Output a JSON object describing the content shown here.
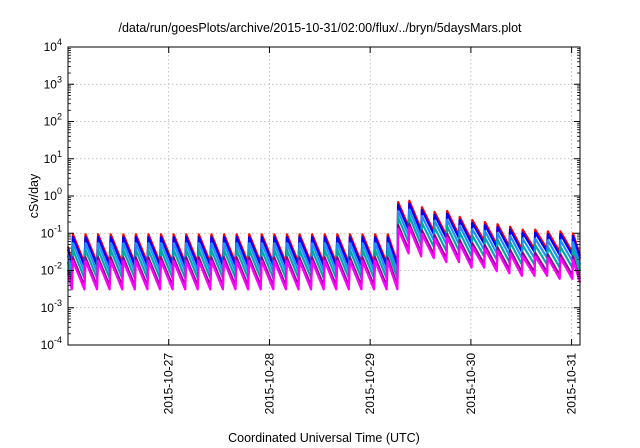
{
  "chart_data": {
    "type": "line",
    "title": "/data/run/goesPlots/archive/2015-10-31/02:00/flux/../bryn/5daysMars.plot",
    "xlabel": "Coordinated Universal Time (UTC)",
    "ylabel": "cSv/day",
    "yscale": "log",
    "ylim": [
      0.0001,
      10000
    ],
    "xlim": [
      "2015-10-26 00:00",
      "2015-10-31 02:00"
    ],
    "grid": true,
    "y_ticks": [
      {
        "base": "10",
        "exp": "-4",
        "value": 0.0001
      },
      {
        "base": "10",
        "exp": "-3",
        "value": 0.001
      },
      {
        "base": "10",
        "exp": "-2",
        "value": 0.01
      },
      {
        "base": "10",
        "exp": "-1",
        "value": 0.1
      },
      {
        "base": "10",
        "exp": "0",
        "value": 1
      },
      {
        "base": "10",
        "exp": "1",
        "value": 10
      },
      {
        "base": "10",
        "exp": "2",
        "value": 100
      },
      {
        "base": "10",
        "exp": "3",
        "value": 1000
      },
      {
        "base": "10",
        "exp": "4",
        "value": 10000
      }
    ],
    "x_ticks": [
      {
        "label": "2015-10-27",
        "value": "2015-10-27 00:00"
      },
      {
        "label": "2015-10-28",
        "value": "2015-10-28 00:00"
      },
      {
        "label": "2015-10-29",
        "value": "2015-10-29 00:00"
      },
      {
        "label": "2015-10-30",
        "value": "2015-10-30 00:00"
      },
      {
        "label": "2015-10-31",
        "value": "2015-10-31 00:00"
      }
    ],
    "series": [
      {
        "color": "#ff0000",
        "scale": 1.25
      },
      {
        "color": "#0000ff",
        "scale": 1.05
      },
      {
        "color": "#1e90ff",
        "scale": 0.72
      },
      {
        "color": "#00a8a8",
        "scale": 0.48
      },
      {
        "color": "#8b008b",
        "scale": 0.3
      },
      {
        "color": "#ff00ff",
        "scale": 0.24
      }
    ],
    "reference_series": {
      "times": [
        "2015-10-26 00:00",
        "2015-10-26 00:55",
        "2015-10-26 01:10",
        "2015-10-26 03:55",
        "2015-10-26 04:10",
        "2015-10-26 06:55",
        "2015-10-26 07:10",
        "2015-10-26 09:55",
        "2015-10-26 10:10",
        "2015-10-26 12:55",
        "2015-10-26 13:10",
        "2015-10-26 15:55",
        "2015-10-26 16:10",
        "2015-10-26 18:55",
        "2015-10-26 19:10",
        "2015-10-26 21:55",
        "2015-10-26 22:10",
        "2015-10-27 00:55",
        "2015-10-27 01:10",
        "2015-10-27 03:55",
        "2015-10-27 04:10",
        "2015-10-27 06:55",
        "2015-10-27 07:10",
        "2015-10-27 09:55",
        "2015-10-27 10:10",
        "2015-10-27 12:55",
        "2015-10-27 13:10",
        "2015-10-27 15:55",
        "2015-10-27 16:10",
        "2015-10-27 18:55",
        "2015-10-27 19:10",
        "2015-10-27 21:55",
        "2015-10-27 22:10",
        "2015-10-28 00:55",
        "2015-10-28 01:10",
        "2015-10-28 03:55",
        "2015-10-28 04:10",
        "2015-10-28 06:55",
        "2015-10-28 07:10",
        "2015-10-28 09:55",
        "2015-10-28 10:10",
        "2015-10-28 12:55",
        "2015-10-28 13:10",
        "2015-10-28 15:55",
        "2015-10-28 16:10",
        "2015-10-28 18:55",
        "2015-10-28 19:10",
        "2015-10-28 21:55",
        "2015-10-28 22:10",
        "2015-10-29 00:55",
        "2015-10-29 01:10",
        "2015-10-29 03:55",
        "2015-10-29 04:10",
        "2015-10-29 06:30",
        "2015-10-29 06:40",
        "2015-10-29 09:10",
        "2015-10-29 09:20",
        "2015-10-29 12:10",
        "2015-10-29 12:20",
        "2015-10-29 15:10",
        "2015-10-29 15:20",
        "2015-10-29 18:10",
        "2015-10-29 18:20",
        "2015-10-29 21:10",
        "2015-10-29 21:20",
        "2015-10-30 00:10",
        "2015-10-30 00:20",
        "2015-10-30 03:10",
        "2015-10-30 03:20",
        "2015-10-30 06:10",
        "2015-10-30 06:20",
        "2015-10-30 09:10",
        "2015-10-30 09:20",
        "2015-10-30 12:10",
        "2015-10-30 12:20",
        "2015-10-30 15:10",
        "2015-10-30 15:20",
        "2015-10-30 18:10",
        "2015-10-30 18:20",
        "2015-10-30 21:10",
        "2015-10-30 21:20",
        "2015-10-31 00:10",
        "2015-10-31 00:20",
        "2015-10-31 02:00"
      ],
      "values": [
        0.035,
        0.013,
        0.075,
        0.013,
        0.075,
        0.013,
        0.075,
        0.013,
        0.075,
        0.013,
        0.075,
        0.013,
        0.075,
        0.013,
        0.075,
        0.013,
        0.075,
        0.013,
        0.075,
        0.013,
        0.075,
        0.013,
        0.075,
        0.013,
        0.075,
        0.013,
        0.075,
        0.013,
        0.075,
        0.013,
        0.075,
        0.013,
        0.075,
        0.013,
        0.075,
        0.013,
        0.075,
        0.013,
        0.075,
        0.013,
        0.075,
        0.013,
        0.075,
        0.013,
        0.075,
        0.013,
        0.075,
        0.013,
        0.075,
        0.013,
        0.075,
        0.013,
        0.075,
        0.013,
        0.55,
        0.12,
        0.6,
        0.1,
        0.4,
        0.09,
        0.3,
        0.07,
        0.32,
        0.07,
        0.22,
        0.05,
        0.18,
        0.05,
        0.16,
        0.04,
        0.14,
        0.035,
        0.12,
        0.03,
        0.1,
        0.03,
        0.1,
        0.03,
        0.09,
        0.025,
        0.09,
        0.025,
        0.08,
        0.02
      ]
    }
  }
}
